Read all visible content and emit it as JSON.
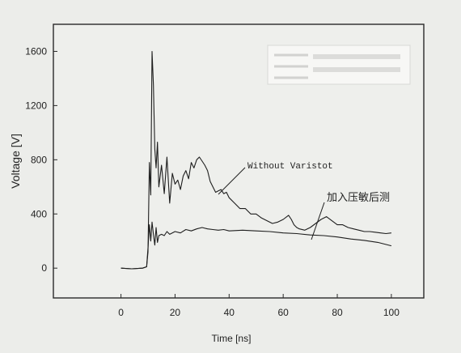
{
  "chart_data": {
    "type": "line",
    "title": "",
    "xlabel": "Time [ns]",
    "ylabel": "Voltage [V]",
    "xlim": [
      -25,
      112
    ],
    "ylim": [
      -220,
      1800
    ],
    "x_ticks": [
      0,
      20,
      40,
      60,
      80,
      100
    ],
    "y_ticks": [
      0,
      400,
      800,
      1200,
      1600
    ],
    "grid": false,
    "colors": {
      "line": "#1e1e1e",
      "frame": "#2a2a2a",
      "background": "#ecedea",
      "plot_background": "#eeefec"
    },
    "annotations": [
      {
        "text": "Without Varistot",
        "points_to_series": 0
      },
      {
        "text": "加入压敏后测",
        "points_to_series": 1
      }
    ],
    "series": [
      {
        "x": [
          0,
          4,
          8,
          9.5,
          10,
          10.5,
          11,
          11.5,
          12,
          12.5,
          13,
          13.5,
          14,
          15,
          16,
          17,
          18,
          19,
          20,
          21,
          22,
          23,
          24,
          25,
          26,
          27,
          28,
          29,
          30,
          31,
          32,
          33,
          34,
          35,
          36,
          37,
          38,
          39,
          40,
          42,
          44,
          46,
          48,
          50,
          52,
          54,
          56,
          58,
          60,
          62,
          63,
          64,
          65,
          66,
          68,
          70,
          72,
          74,
          76,
          78,
          80,
          82,
          84,
          86,
          88,
          90,
          92,
          94,
          96,
          98,
          100
        ],
        "values": [
          0,
          -5,
          0,
          10,
          120,
          780,
          540,
          1600,
          1350,
          880,
          740,
          930,
          600,
          760,
          550,
          820,
          480,
          700,
          620,
          650,
          580,
          680,
          720,
          660,
          780,
          740,
          800,
          820,
          790,
          760,
          720,
          640,
          600,
          560,
          570,
          580,
          550,
          560,
          520,
          480,
          440,
          440,
          400,
          400,
          370,
          350,
          330,
          340,
          360,
          390,
          360,
          320,
          300,
          290,
          280,
          300,
          330,
          360,
          380,
          350,
          320,
          320,
          300,
          290,
          280,
          270,
          270,
          265,
          260,
          255,
          260
        ]
      },
      {
        "x": [
          0,
          4,
          8,
          9.5,
          10,
          10.5,
          11,
          11.5,
          12,
          12.5,
          13,
          13.5,
          14,
          15,
          16,
          17,
          18,
          20,
          22,
          24,
          26,
          28,
          30,
          32,
          34,
          36,
          38,
          40,
          45,
          50,
          55,
          60,
          65,
          70,
          75,
          80,
          85,
          90,
          95,
          100
        ],
        "values": [
          0,
          -5,
          0,
          10,
          150,
          320,
          200,
          340,
          250,
          170,
          300,
          190,
          240,
          250,
          240,
          270,
          250,
          270,
          260,
          285,
          275,
          290,
          300,
          290,
          285,
          280,
          285,
          275,
          280,
          275,
          270,
          260,
          255,
          245,
          240,
          230,
          215,
          205,
          190,
          165
        ]
      }
    ]
  }
}
